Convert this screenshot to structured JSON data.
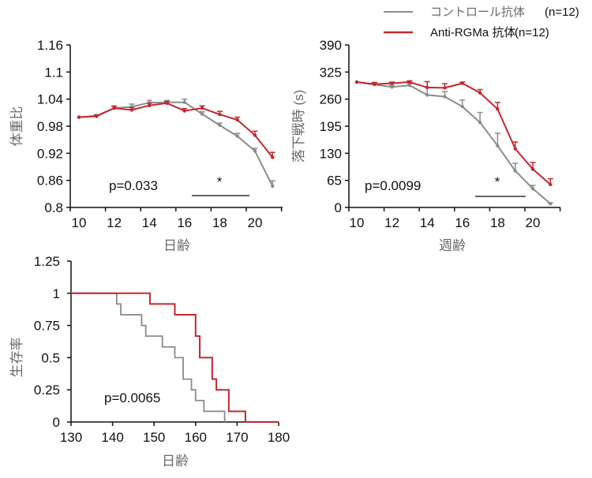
{
  "legend": {
    "items": [
      {
        "label": "コントロール抗体",
        "n": "(n=12)",
        "color": "#8c8c8c",
        "text_color": "#6a6a6a"
      },
      {
        "label": "Anti-RGMa 抗体",
        "n": "(n=12)",
        "color": "#c0282d",
        "text_color": "#111111"
      }
    ]
  },
  "chart_data": [
    {
      "id": "body-weight",
      "type": "line",
      "title": "",
      "xlabel": "日齢",
      "ylabel": "体重比",
      "x": [
        10,
        11,
        12,
        13,
        14,
        15,
        16,
        17,
        18,
        19,
        20,
        21
      ],
      "x_tick_labels": [
        "10",
        "12",
        "14",
        "16",
        "18",
        "20"
      ],
      "y_ticks": [
        "0.8",
        "0.86",
        "0.92",
        "0.98",
        "1.04",
        "1.1",
        "1.16"
      ],
      "ylim": [
        0.8,
        1.16
      ],
      "grid": false,
      "series": [
        {
          "name": "コントロール抗体",
          "color": "#8c8c8c",
          "values": [
            1.0,
            1.003,
            1.02,
            1.023,
            1.032,
            1.033,
            1.033,
            1.007,
            0.982,
            0.958,
            0.925,
            0.847
          ],
          "errors": [
            0.0,
            0.003,
            0.005,
            0.006,
            0.005,
            0.004,
            0.007,
            0.005,
            0.005,
            0.006,
            0.006,
            0.012
          ]
        },
        {
          "name": "Anti-RGMa 抗体",
          "color": "#c0282d",
          "values": [
            1.0,
            1.002,
            1.02,
            1.016,
            1.026,
            1.031,
            1.014,
            1.02,
            1.006,
            0.994,
            0.96,
            0.911
          ],
          "errors": [
            0.0,
            0.002,
            0.004,
            0.005,
            0.005,
            0.004,
            0.005,
            0.005,
            0.007,
            0.006,
            0.009,
            0.011
          ]
        }
      ],
      "annotations": {
        "p_value": "p=0.033",
        "significance": "*",
        "significance_range": [
          17,
          20
        ]
      }
    },
    {
      "id": "rotarod",
      "type": "line",
      "title": "",
      "xlabel": "週齢",
      "ylabel": "落下戦時 (s)",
      "x": [
        10,
        11,
        12,
        13,
        14,
        15,
        16,
        17,
        18,
        19,
        20,
        21
      ],
      "x_tick_labels": [
        "10",
        "12",
        "14",
        "16",
        "18",
        "20"
      ],
      "y_ticks": [
        "0",
        "65",
        "130",
        "195",
        "260",
        "325",
        "390"
      ],
      "ylim": [
        0,
        390
      ],
      "grid": false,
      "series": [
        {
          "name": "コントロール抗体",
          "color": "#8c8c8c",
          "values": [
            301,
            295,
            289,
            293,
            270,
            266,
            242,
            204,
            148,
            88,
            45,
            9
          ],
          "errors": [
            0,
            4,
            4,
            4,
            18,
            12,
            16,
            24,
            30,
            18,
            8,
            2
          ]
        },
        {
          "name": "Anti-RGMa 抗体",
          "color": "#c0282d",
          "values": [
            301,
            296,
            298,
            301,
            288,
            287,
            298,
            275,
            236,
            141,
            92,
            55
          ],
          "errors": [
            0,
            4,
            3,
            3,
            14,
            10,
            3,
            8,
            16,
            16,
            16,
            14
          ]
        }
      ],
      "annotations": {
        "p_value": "p=0.0099",
        "significance": "*",
        "significance_range": [
          17,
          20
        ]
      }
    },
    {
      "id": "survival",
      "type": "line",
      "subtype": "step",
      "title": "",
      "xlabel": "日齢",
      "ylabel": "生存率",
      "x_ticks": [
        "130",
        "140",
        "150",
        "160",
        "170",
        "180"
      ],
      "xlim": [
        130,
        180
      ],
      "y_ticks": [
        "0",
        "0.25",
        "0.5",
        "0.75",
        "1",
        "1.25"
      ],
      "ylim": [
        0,
        1.25
      ],
      "grid": false,
      "series": [
        {
          "name": "コントロール抗体",
          "color": "#8c8c8c",
          "steps": [
            [
              130,
              1.0
            ],
            [
              141,
              0.917
            ],
            [
              142,
              0.833
            ],
            [
              147,
              0.75
            ],
            [
              148,
              0.667
            ],
            [
              152,
              0.583
            ],
            [
              155,
              0.5
            ],
            [
              157,
              0.333
            ],
            [
              159,
              0.25
            ],
            [
              160,
              0.167
            ],
            [
              162,
              0.083
            ],
            [
              167,
              0.0
            ]
          ],
          "end_x": 167
        },
        {
          "name": "Anti-RGMa 抗体",
          "color": "#c0282d",
          "steps": [
            [
              130,
              1.0
            ],
            [
              149,
              0.917
            ],
            [
              155,
              0.833
            ],
            [
              160,
              0.667
            ],
            [
              161,
              0.5
            ],
            [
              164,
              0.333
            ],
            [
              165,
              0.25
            ],
            [
              168,
              0.083
            ],
            [
              172,
              0.0
            ]
          ],
          "end_x": 180
        }
      ],
      "annotations": {
        "p_value": "p=0.0065"
      }
    }
  ]
}
